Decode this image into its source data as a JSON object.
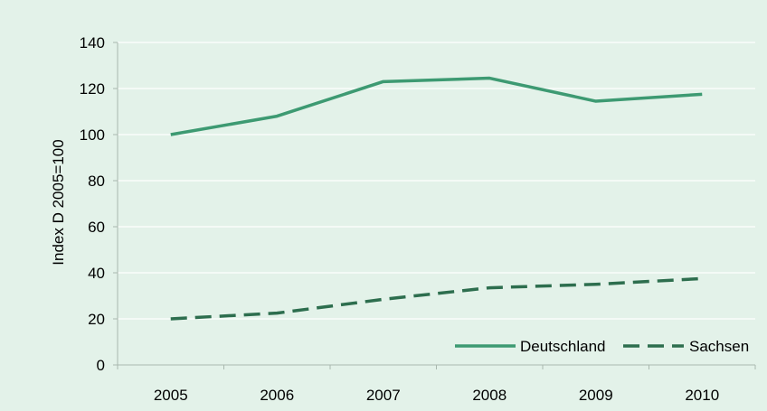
{
  "chart_data": {
    "type": "line",
    "title": "",
    "xlabel": "",
    "ylabel": "Index D 2005=100",
    "categories": [
      "2005",
      "2006",
      "2007",
      "2008",
      "2009",
      "2010"
    ],
    "ylim": [
      0,
      140
    ],
    "yticks": [
      "0",
      "20",
      "40",
      "60",
      "80",
      "100",
      "120",
      "140"
    ],
    "grid": true,
    "legend_position": "bottom-right",
    "series": [
      {
        "name": "Deutschland",
        "values": [
          100,
          108,
          123,
          124.5,
          114.5,
          117.5
        ],
        "color": "#3d9a72",
        "style": "solid"
      },
      {
        "name": "Sachsen",
        "values": [
          20,
          22.5,
          28.5,
          33.5,
          35,
          37.5
        ],
        "color": "#2d6e4e",
        "style": "dashed"
      }
    ],
    "colors": {
      "background": "#e3f2e9",
      "gridline": "#ffffff",
      "axis": "#a9b8ae"
    }
  }
}
